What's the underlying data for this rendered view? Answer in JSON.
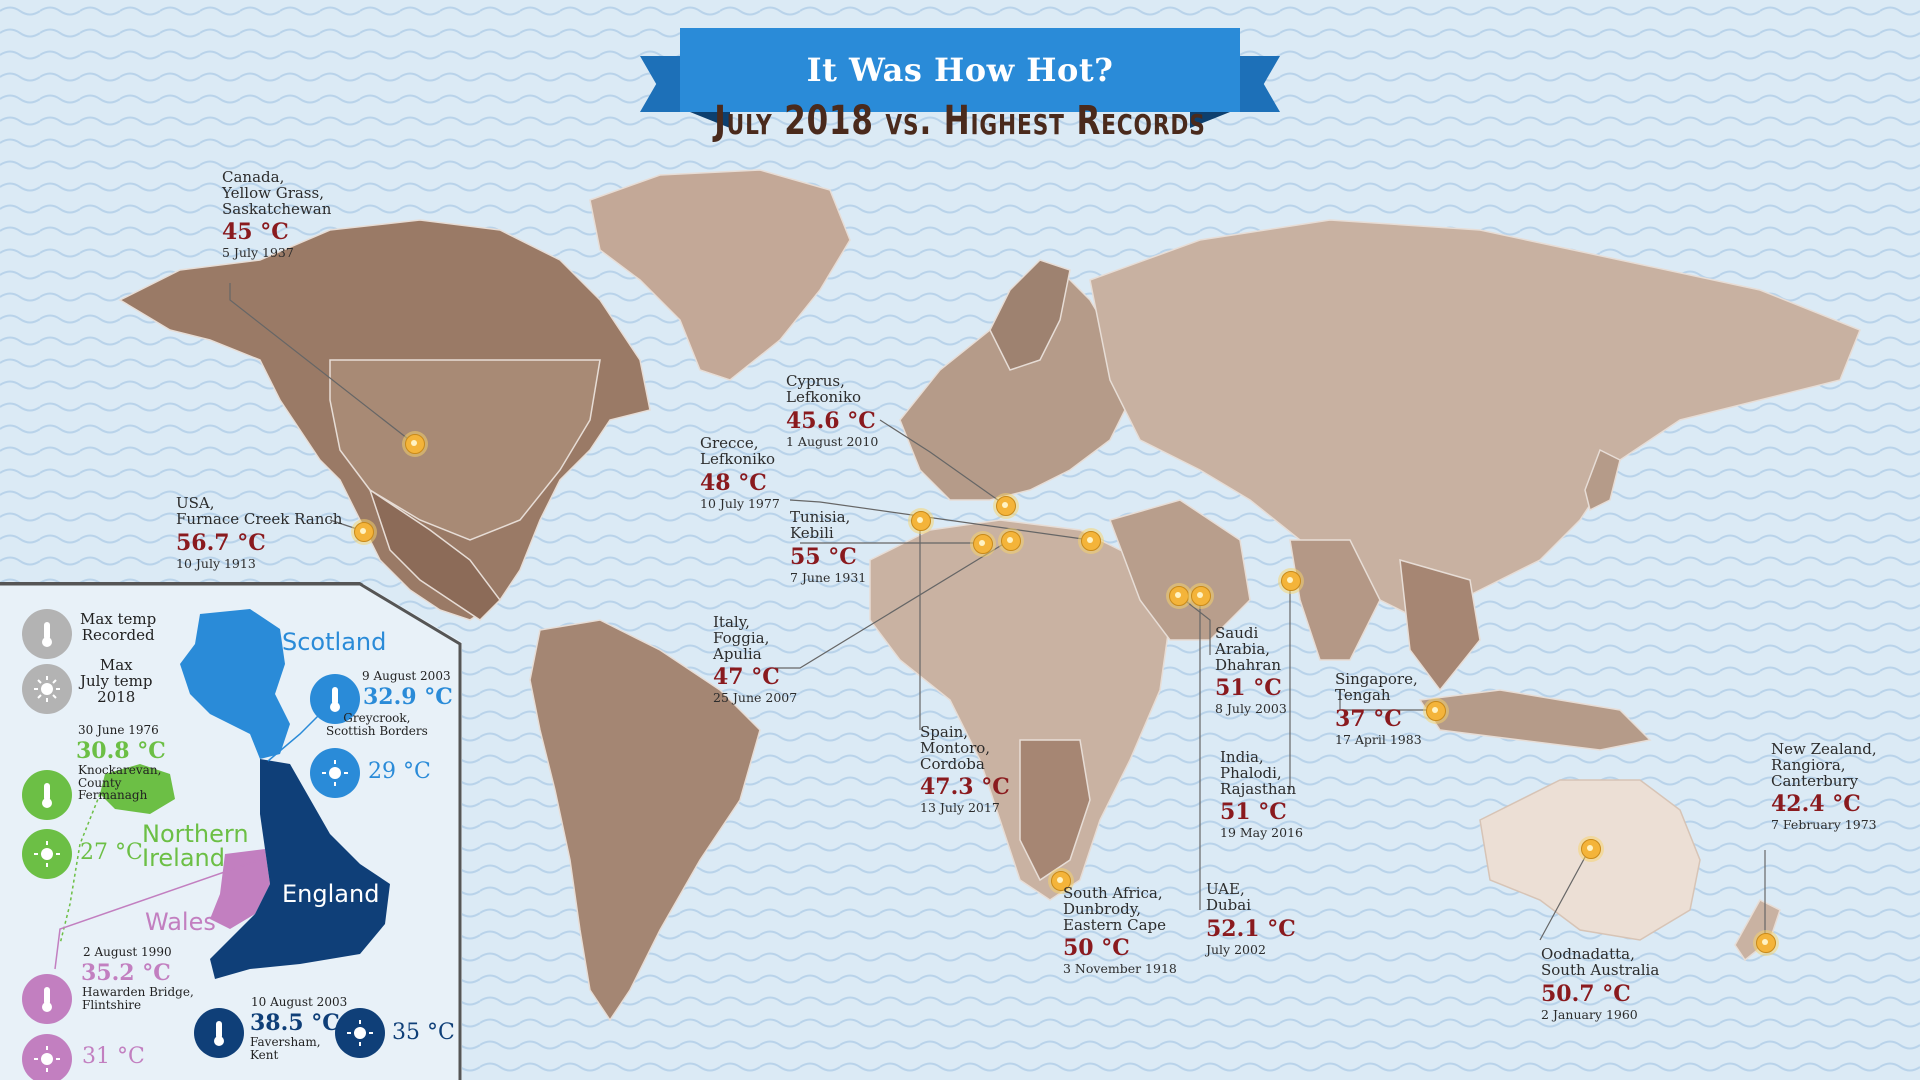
{
  "header": {
    "title": "It Was How Hot?",
    "subtitle": "July 2018 vs. Highest Records"
  },
  "colors": {
    "ocean": "#dbeaf5",
    "ribbon": "#2a8bd8",
    "land_dark": "#8c6b58",
    "land_mid": "#b99f8c",
    "land_light": "#e7d9cf",
    "temp_red": "#8a1a1e",
    "scotland": "#2a8bd8",
    "northern_ireland": "#6cbf45",
    "wales": "#c27fc0",
    "england": "#0f3f78",
    "legend_grey": "#b3b3b3"
  },
  "records": [
    {
      "id": "canada",
      "place": "Canada,\nYellow Grass,\nSaskatchewan",
      "temp": "45 °C",
      "date": "5 July 1937"
    },
    {
      "id": "usa",
      "place": "USA,\nFurnace Creek Ranch",
      "temp": "56.7 °C",
      "date": "10 July 1913"
    },
    {
      "id": "cyprus",
      "place": "Cyprus,\nLefkoniko",
      "temp": "45.6 °C",
      "date": "1 August 2010"
    },
    {
      "id": "greece",
      "place": "Grecce,\nLefkoniko",
      "temp": "48 °C",
      "date": "10 July 1977"
    },
    {
      "id": "tunisia",
      "place": "Tunisia,\nKebili",
      "temp": "55 °C",
      "date": "7 June 1931"
    },
    {
      "id": "italy",
      "place": "Italy,\nFoggia,\nApulia",
      "temp": "47 °C",
      "date": "25 June 2007"
    },
    {
      "id": "spain",
      "place": "Spain,\nMontoro,\nCordoba",
      "temp": "47.3 °C",
      "date": "13 July 2017"
    },
    {
      "id": "saudi",
      "place": "Saudi\nArabia,\nDhahran",
      "temp": "51 °C",
      "date": "8 July 2003"
    },
    {
      "id": "india",
      "place": "India,\nPhalodi,\nRajasthan",
      "temp": "51 °C",
      "date": "19 May 2016"
    },
    {
      "id": "uae",
      "place": "UAE,\nDubai",
      "temp": "52.1 °C",
      "date": "July 2002"
    },
    {
      "id": "south_africa",
      "place": "South Africa,\nDunbrody,\nEastern Cape",
      "temp": "50 °C",
      "date": "3 November 1918"
    },
    {
      "id": "singapore",
      "place": "Singapore,\nTengah",
      "temp": "37 °C",
      "date": "17 April 1983"
    },
    {
      "id": "australia",
      "place": "Oodnadatta,\nSouth Australia",
      "temp": "50.7 °C",
      "date": "2 January 1960"
    },
    {
      "id": "new_zealand",
      "place": "New Zealand,\nRangiora,\nCanterbury",
      "temp": "42.4 °C",
      "date": "7 February 1973"
    }
  ],
  "uk_inset": {
    "legend": {
      "max_temp": "Max temp\nRecorded",
      "max_july": "Max\nJuly temp\n2018"
    },
    "nations": {
      "scotland": {
        "name": "Scotland",
        "record_date": "9 August 2003",
        "record_temp": "32.9 °C",
        "record_place": "Greycrook,\nScottish Borders",
        "july_temp": "29 °C"
      },
      "northern_ireland": {
        "name": "Northern\nIreland",
        "record_date": "30 June 1976",
        "record_temp": "30.8 °C",
        "record_place": "Knockarevan,\nCounty\nFermanagh",
        "july_temp": "27 °C"
      },
      "wales": {
        "name": "Wales",
        "record_date": "2 August 1990",
        "record_temp": "35.2 °C",
        "record_place": "Hawarden Bridge,\nFlintshire",
        "july_temp": "31 °C"
      },
      "england": {
        "name": "England",
        "record_date": "10 August 2003",
        "record_temp": "38.5 °C",
        "record_place": "Faversham,\nKent",
        "july_temp": "35 °C"
      }
    }
  }
}
